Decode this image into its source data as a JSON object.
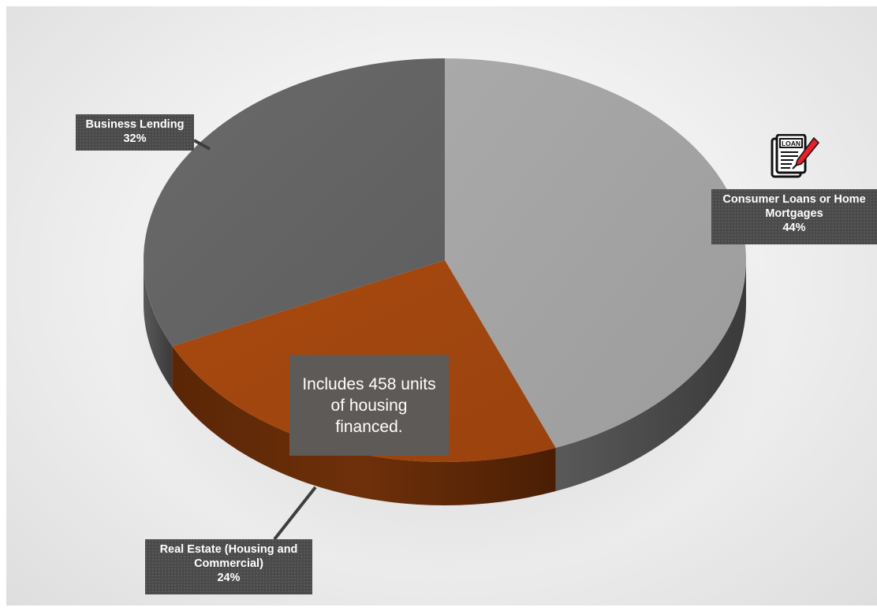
{
  "chart_data": {
    "type": "pie",
    "style": "3d",
    "slices": [
      {
        "label": "Consumer Loans or Home Mortgages",
        "value": 44,
        "display": "44%",
        "color": "#a4a4a4"
      },
      {
        "label": "Real Estate (Housing and Commercial)",
        "value": 24,
        "display": "24%",
        "color": "#a0460f"
      },
      {
        "label": "Business Lending",
        "value": 32,
        "display": "32%",
        "color": "#646464"
      }
    ],
    "data_labels": {
      "consumer": {
        "line1": "Consumer Loans or Home",
        "line2": "Mortgages",
        "percent": "44%"
      },
      "real_estate": {
        "line1": "Real Estate (Housing and",
        "line2": "Commercial)",
        "percent": "24%"
      },
      "business": {
        "line1": "Business Lending",
        "percent": "32%"
      }
    },
    "annotation": "Includes 458 units of housing financed.",
    "icon": {
      "name": "loan-document-icon",
      "text": "LOAN"
    },
    "colors": {
      "side_gray": "#4a4a4a",
      "side_orange": "#6a2e0a",
      "callout_bg": "#4a4a4a",
      "note_bg": "#5e5a57",
      "pen_red": "#e8202a"
    }
  }
}
